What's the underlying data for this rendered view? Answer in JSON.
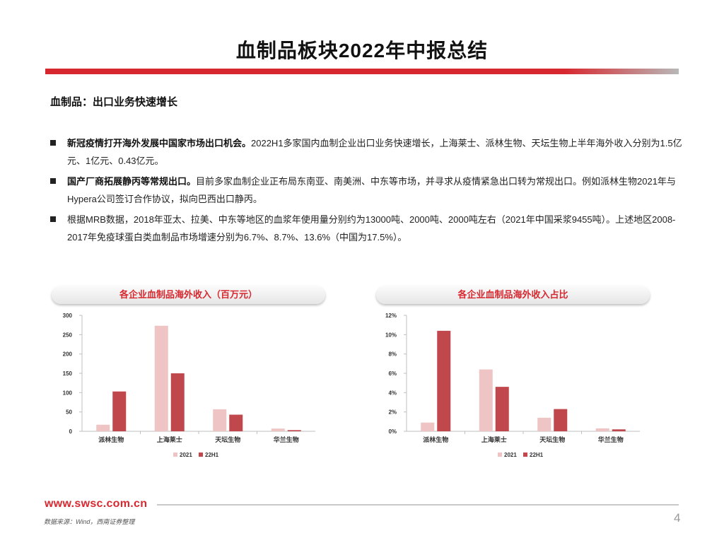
{
  "page": {
    "title": "血制品板块2022年中报总结",
    "subtitle": "血制品：出口业务快速增长",
    "bullets": [
      {
        "bold": "新冠疫情打开海外发展中国家市场出口机会。",
        "text": "2022H1多家国内血制企业出口业务快速增长，上海莱士、派林生物、天坛生物上半年海外收入分别为1.5亿元、1亿元、0.43亿元。"
      },
      {
        "bold": "国产厂商拓展静丙等常规出口。",
        "text": "目前多家血制企业正布局东南亚、南美洲、中东等市场，并寻求从疫情紧急出口转为常规出口。例如派林生物2021年与Hypera公司签订合作协议，拟向巴西出口静丙。"
      },
      {
        "bold": "",
        "text": "根据MRB数据，2018年亚太、拉美、中东等地区的血浆年使用量分别约为13000吨、2000吨、2000吨左右（2021年中国采浆9455吨）。上述地区2008-2017年免疫球蛋白类血制品市场增速分别为6.7%、8.7%、13.6%（中国为17.5%）。"
      }
    ],
    "footer": {
      "url": "www.swsc.com.cn",
      "source": "数据来源：Wind，西南证券整理",
      "page_number": "4"
    }
  },
  "colors": {
    "accent": "#d7282f",
    "series_2021": "#efc4c4",
    "series_22H1": "#c0474b"
  },
  "chart_data": [
    {
      "type": "bar",
      "title": "各企业血制品海外收入（百万元）",
      "categories": [
        "派林生物",
        "上海莱士",
        "天坛生物",
        "华兰生物"
      ],
      "series": [
        {
          "name": "2021",
          "values": [
            17,
            273,
            57,
            7
          ]
        },
        {
          "name": "22H1",
          "values": [
            103,
            150,
            43,
            3
          ]
        }
      ],
      "ylim": [
        0,
        300
      ],
      "yticks": [
        0,
        50,
        100,
        150,
        200,
        250,
        300
      ],
      "ytick_labels": [
        "0",
        "50",
        "100",
        "150",
        "200",
        "250",
        "300"
      ],
      "legend": "bottom",
      "grid": false
    },
    {
      "type": "bar",
      "title": "各企业血制品海外收入占比",
      "categories": [
        "派林生物",
        "上海莱士",
        "天坛生物",
        "华兰生物"
      ],
      "series": [
        {
          "name": "2021",
          "values": [
            0.9,
            6.4,
            1.4,
            0.3
          ]
        },
        {
          "name": "22H1",
          "values": [
            10.4,
            4.6,
            2.3,
            0.2
          ]
        }
      ],
      "ylim": [
        0,
        12
      ],
      "yticks": [
        0,
        2,
        4,
        6,
        8,
        10,
        12
      ],
      "ytick_labels": [
        "0%",
        "2%",
        "4%",
        "6%",
        "8%",
        "10%",
        "12%"
      ],
      "legend": "bottom",
      "grid": false
    }
  ]
}
